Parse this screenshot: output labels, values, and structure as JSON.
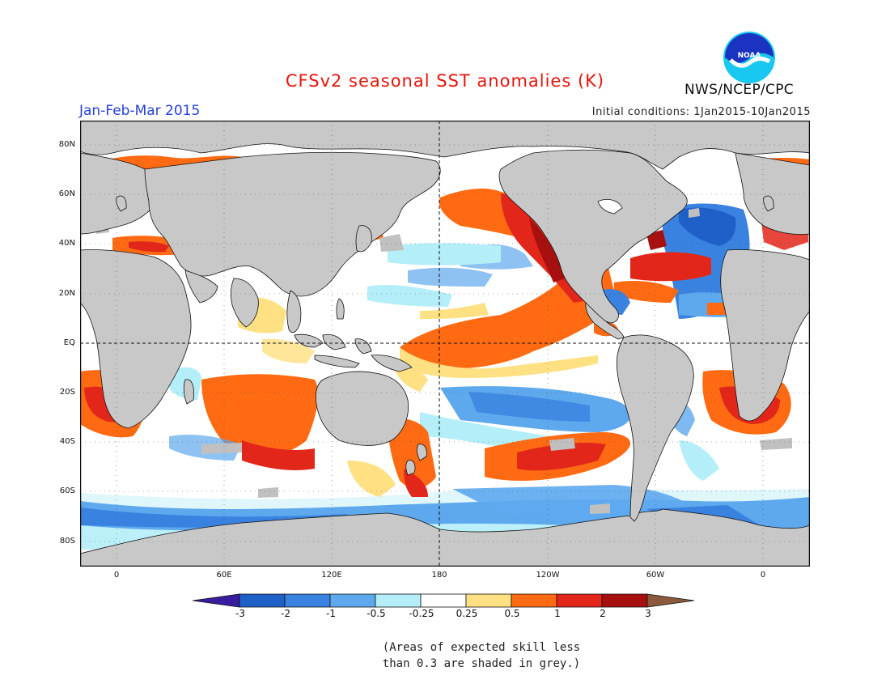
{
  "header": {
    "title": "CFSv2 seasonal SST anomalies (K)",
    "period": "Jan-Feb-Mar 2015",
    "initial_conditions": "Initial conditions: 1Jan2015-10Jan2015",
    "agency": "NWS/NCEP/CPC",
    "logo_text": "NOAA"
  },
  "map": {
    "lat_labels": [
      "80N",
      "60N",
      "40N",
      "20N",
      "EQ",
      "20S",
      "40S",
      "60S",
      "80S"
    ],
    "lon_labels": [
      "0",
      "60E",
      "120E",
      "180",
      "120W",
      "60W",
      "0"
    ],
    "land_color": "#c8c8c8",
    "reference_lines": [
      "EQ",
      "180"
    ]
  },
  "colorbar": {
    "labels": [
      "-3",
      "-2",
      "-1",
      "-0.5",
      "-0.25",
      "0.25",
      "0.5",
      "1",
      "2",
      "3"
    ],
    "colors": [
      "#3a1ca0",
      "#1f5fc8",
      "#3a82e0",
      "#5ea8ee",
      "#b4eef8",
      "#ffffff",
      "#ffe082",
      "#ff6a12",
      "#e2261a",
      "#a80f0f",
      "#8b5a3c"
    ]
  },
  "note": {
    "line1": "(Areas of expected skill less",
    "line2": "than 0.3 are shaded in grey.)"
  }
}
